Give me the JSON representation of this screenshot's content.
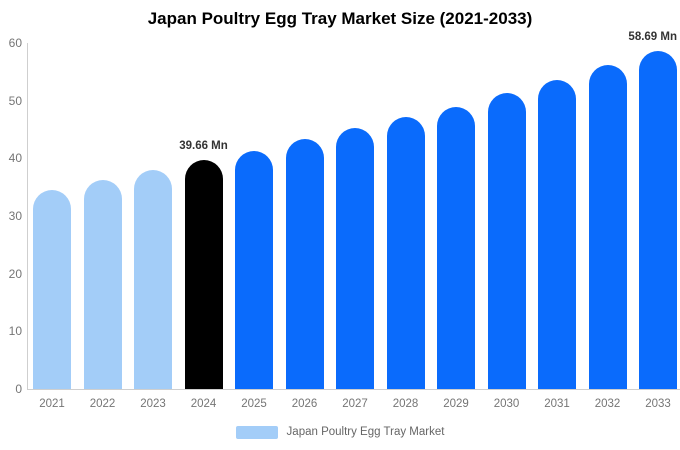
{
  "title": "Japan Poultry Egg Tray Market Size (2021-2033)",
  "chart_data": {
    "type": "bar",
    "title": "Japan Poultry Egg Tray Market Size (2021-2033)",
    "categories": [
      "2021",
      "2022",
      "2023",
      "2024",
      "2025",
      "2026",
      "2027",
      "2028",
      "2029",
      "2030",
      "2031",
      "2032",
      "2033"
    ],
    "values": [
      34.5,
      36.2,
      37.9,
      39.66,
      41.2,
      43.3,
      45.3,
      47.2,
      48.9,
      51.3,
      53.6,
      56.2,
      58.69
    ],
    "unit": "Mn",
    "xlabel": "",
    "ylabel": "",
    "ylim": [
      0,
      60
    ],
    "yticks": [
      0,
      10,
      20,
      30,
      40,
      50,
      60
    ],
    "grid": false,
    "colors": [
      "#a3cdf8",
      "#a3cdf8",
      "#a3cdf8",
      "#000000",
      "#0a6bfc",
      "#0a6bfc",
      "#0a6bfc",
      "#0a6bfc",
      "#0a6bfc",
      "#0a6bfc",
      "#0a6bfc",
      "#0a6bfc",
      "#0a6bfc"
    ],
    "annotations": [
      {
        "index": 3,
        "text": "39.66 Mn",
        "align": "center"
      },
      {
        "index": 12,
        "text": "58.69 Mn",
        "align": "right"
      }
    ],
    "legend": {
      "position": "bottom",
      "label": "Japan Poultry Egg Tray Market",
      "swatch_color": "#a3cdf8"
    }
  },
  "colors": {
    "forecast_blue": "#0a6bfc",
    "historical_light_blue": "#a3cdf8",
    "highlight_black": "#000000",
    "axis_line": "#cfcfcf",
    "tick_text": "#757575",
    "legend_text": "#666666",
    "annotation_text": "#333333",
    "title_text": "#000000",
    "background": "#ffffff"
  }
}
